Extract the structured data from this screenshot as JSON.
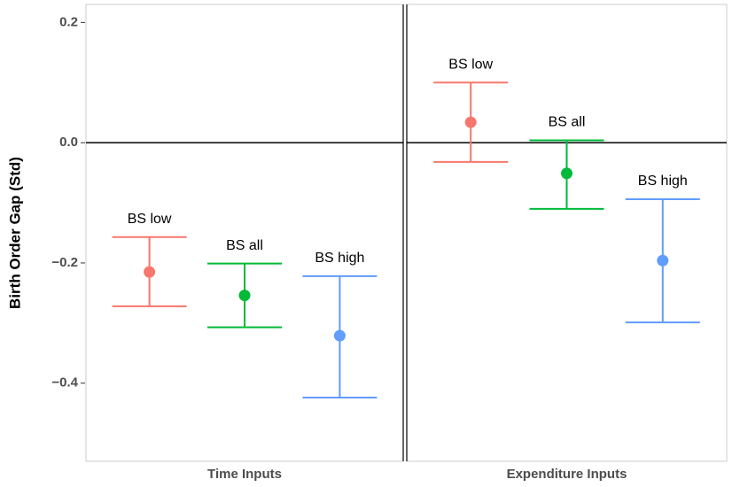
{
  "chart_data": {
    "type": "pointrange",
    "ylabel": "Birth Order Gap (Std)",
    "categories": [
      "Time Inputs",
      "Expenditure Inputs"
    ],
    "series": [
      {
        "name": "BS low",
        "color": "#f8766d",
        "values": [
          -0.215,
          0.034
        ],
        "lower": [
          -0.272,
          -0.032
        ],
        "upper": [
          -0.157,
          0.1
        ]
      },
      {
        "name": "BS all",
        "color": "#00ba38",
        "values": [
          -0.254,
          -0.051
        ],
        "lower": [
          -0.307,
          -0.11
        ],
        "upper": [
          -0.201,
          0.004
        ]
      },
      {
        "name": "BS high",
        "color": "#619cff",
        "values": [
          -0.321,
          -0.196
        ],
        "lower": [
          -0.424,
          -0.299
        ],
        "upper": [
          -0.222,
          -0.094
        ]
      }
    ],
    "ylim": [
      -0.53,
      0.23
    ],
    "yticks": [
      {
        "value": 0.2,
        "label": "0.2"
      },
      {
        "value": 0,
        "label": "0.0"
      },
      {
        "value": -0.2,
        "label": "−0.2"
      },
      {
        "value": -0.4,
        "label": "−0.4"
      }
    ],
    "hline": 0,
    "grid": false
  }
}
